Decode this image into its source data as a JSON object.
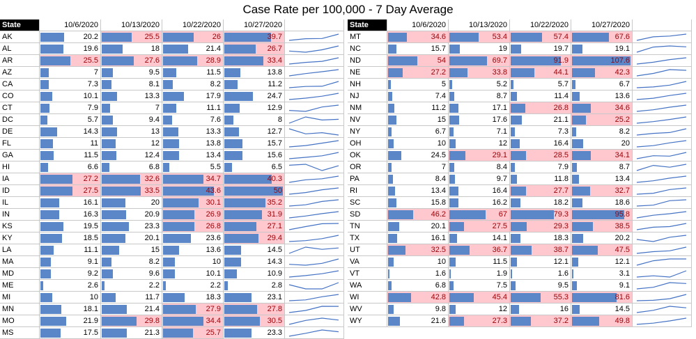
{
  "chart_data": {
    "type": "table",
    "title": "Case Rate per 100,000 - 7 Day Average",
    "state_header": "State",
    "dates": [
      "10/6/2020",
      "10/13/2020",
      "10/22/2020",
      "10/27/2020"
    ],
    "colors": {
      "bar": "#5b86c8",
      "highlight_fill": "#ffc7ce",
      "highlight_text": "#9c0006",
      "sparkline": "#4472c4"
    },
    "panels": [
      {
        "rows": [
          {
            "state": "AK",
            "values": [
              20.2,
              25.5,
              26,
              39.7
            ],
            "highlight": [
              false,
              true,
              true,
              true
            ]
          },
          {
            "state": "AL",
            "values": [
              19.6,
              18,
              21.4,
              26.7
            ],
            "highlight": [
              false,
              false,
              false,
              true
            ]
          },
          {
            "state": "AR",
            "values": [
              25.5,
              27.6,
              28.9,
              33.4
            ],
            "highlight": [
              true,
              true,
              true,
              true
            ]
          },
          {
            "state": "AZ",
            "values": [
              7,
              9.5,
              11.5,
              13.8
            ],
            "highlight": [
              false,
              false,
              false,
              false
            ]
          },
          {
            "state": "CA",
            "values": [
              7.3,
              8.1,
              8.2,
              11.2
            ],
            "highlight": [
              false,
              false,
              false,
              false
            ]
          },
          {
            "state": "CO",
            "values": [
              10.1,
              13.3,
              17.9,
              24.7
            ],
            "highlight": [
              false,
              false,
              false,
              false
            ]
          },
          {
            "state": "CT",
            "values": [
              7.9,
              7,
              11.1,
              12.9
            ],
            "highlight": [
              false,
              false,
              false,
              false
            ]
          },
          {
            "state": "DC",
            "values": [
              5.7,
              9.4,
              7.6,
              8
            ],
            "highlight": [
              false,
              false,
              false,
              false
            ]
          },
          {
            "state": "DE",
            "values": [
              14.3,
              13,
              13.3,
              12.7
            ],
            "highlight": [
              false,
              false,
              false,
              false
            ]
          },
          {
            "state": "FL",
            "values": [
              11,
              12,
              13.8,
              15.7
            ],
            "highlight": [
              false,
              false,
              false,
              false
            ]
          },
          {
            "state": "GA",
            "values": [
              11.5,
              12.4,
              13.4,
              15.6
            ],
            "highlight": [
              false,
              false,
              false,
              false
            ]
          },
          {
            "state": "HI",
            "values": [
              6.6,
              6.8,
              5.5,
              6.5
            ],
            "highlight": [
              false,
              false,
              false,
              false
            ]
          },
          {
            "state": "IA",
            "values": [
              27.2,
              32.6,
              34.7,
              40.3
            ],
            "highlight": [
              true,
              true,
              true,
              true
            ]
          },
          {
            "state": "ID",
            "values": [
              27.5,
              33.5,
              43.6,
              50
            ],
            "highlight": [
              true,
              true,
              true,
              true
            ]
          },
          {
            "state": "IL",
            "values": [
              16.1,
              20,
              30.1,
              35.2
            ],
            "highlight": [
              false,
              false,
              true,
              true
            ]
          },
          {
            "state": "IN",
            "values": [
              16.3,
              20.9,
              26.9,
              31.9
            ],
            "highlight": [
              false,
              false,
              true,
              true
            ]
          },
          {
            "state": "KS",
            "values": [
              19.5,
              23.3,
              26.8,
              27.1
            ],
            "highlight": [
              false,
              false,
              true,
              true
            ]
          },
          {
            "state": "KY",
            "values": [
              18.5,
              20.1,
              23.6,
              29.4
            ],
            "highlight": [
              false,
              false,
              false,
              true
            ]
          },
          {
            "state": "LA",
            "values": [
              11.1,
              15,
              13.6,
              14.5
            ],
            "highlight": [
              false,
              false,
              false,
              false
            ]
          },
          {
            "state": "MA",
            "values": [
              9.1,
              8.2,
              10,
              14.3
            ],
            "highlight": [
              false,
              false,
              false,
              false
            ]
          },
          {
            "state": "MD",
            "values": [
              9.2,
              9.6,
              10.1,
              10.9
            ],
            "highlight": [
              false,
              false,
              false,
              false
            ]
          },
          {
            "state": "ME",
            "values": [
              2.6,
              2.2,
              2.2,
              2.8
            ],
            "highlight": [
              false,
              false,
              false,
              false
            ]
          },
          {
            "state": "MI",
            "values": [
              10,
              11.7,
              18.3,
              23.1
            ],
            "highlight": [
              false,
              false,
              false,
              false
            ]
          },
          {
            "state": "MN",
            "values": [
              18.1,
              21.4,
              27.9,
              27.8
            ],
            "highlight": [
              false,
              false,
              true,
              true
            ]
          },
          {
            "state": "MO",
            "values": [
              21.9,
              29.8,
              34.4,
              30.5
            ],
            "highlight": [
              false,
              true,
              true,
              true
            ]
          },
          {
            "state": "MS",
            "values": [
              17.5,
              21.3,
              25.7,
              23.3
            ],
            "highlight": [
              false,
              false,
              true,
              false
            ]
          }
        ]
      },
      {
        "rows": [
          {
            "state": "MT",
            "values": [
              34.6,
              53.4,
              57.4,
              67.6
            ],
            "highlight": [
              true,
              true,
              true,
              true
            ]
          },
          {
            "state": "NC",
            "values": [
              15.7,
              19,
              19.7,
              19.1
            ],
            "highlight": [
              false,
              false,
              false,
              false
            ]
          },
          {
            "state": "ND",
            "values": [
              54,
              69.7,
              91.9,
              107.6
            ],
            "highlight": [
              true,
              true,
              true,
              true
            ]
          },
          {
            "state": "NE",
            "values": [
              27.2,
              33.8,
              44.1,
              42.3
            ],
            "highlight": [
              true,
              true,
              true,
              true
            ]
          },
          {
            "state": "NH",
            "values": [
              5,
              5.2,
              5.7,
              6.7
            ],
            "highlight": [
              false,
              false,
              false,
              false
            ]
          },
          {
            "state": "NJ",
            "values": [
              7.4,
              8.7,
              11.4,
              13.6
            ],
            "highlight": [
              false,
              false,
              false,
              false
            ]
          },
          {
            "state": "NM",
            "values": [
              11.2,
              17.1,
              26.8,
              34.6
            ],
            "highlight": [
              false,
              false,
              true,
              true
            ]
          },
          {
            "state": "NV",
            "values": [
              15,
              17.6,
              21.1,
              25.2
            ],
            "highlight": [
              false,
              false,
              false,
              true
            ]
          },
          {
            "state": "NY",
            "values": [
              6.7,
              7.1,
              7.3,
              8.2
            ],
            "highlight": [
              false,
              false,
              false,
              false
            ]
          },
          {
            "state": "OH",
            "values": [
              10,
              12,
              16.4,
              20
            ],
            "highlight": [
              false,
              false,
              false,
              false
            ]
          },
          {
            "state": "OK",
            "values": [
              24.5,
              29.1,
              28.5,
              34.1
            ],
            "highlight": [
              false,
              true,
              true,
              true
            ]
          },
          {
            "state": "OR",
            "values": [
              7,
              8.4,
              7.9,
              8.7
            ],
            "highlight": [
              false,
              false,
              false,
              false
            ]
          },
          {
            "state": "PA",
            "values": [
              8.4,
              9.7,
              11.8,
              13.4
            ],
            "highlight": [
              false,
              false,
              false,
              false
            ]
          },
          {
            "state": "RI",
            "values": [
              13.4,
              16.4,
              27.7,
              32.7
            ],
            "highlight": [
              false,
              false,
              true,
              true
            ]
          },
          {
            "state": "SC",
            "values": [
              15.8,
              16.2,
              18.2,
              18.6
            ],
            "highlight": [
              false,
              false,
              false,
              false
            ]
          },
          {
            "state": "SD",
            "values": [
              46.2,
              67,
              79.3,
              95.8
            ],
            "highlight": [
              true,
              true,
              true,
              true
            ]
          },
          {
            "state": "TN",
            "values": [
              20.1,
              27.5,
              29.3,
              38.5
            ],
            "highlight": [
              false,
              true,
              true,
              true
            ]
          },
          {
            "state": "TX",
            "values": [
              16.1,
              14.1,
              18.3,
              20.2
            ],
            "highlight": [
              false,
              false,
              false,
              false
            ]
          },
          {
            "state": "UT",
            "values": [
              32.5,
              36.7,
              38.7,
              47.5
            ],
            "highlight": [
              true,
              true,
              true,
              true
            ]
          },
          {
            "state": "VA",
            "values": [
              10,
              11.5,
              12.1,
              12.1
            ],
            "highlight": [
              false,
              false,
              false,
              false
            ]
          },
          {
            "state": "VT",
            "values": [
              1.6,
              1.9,
              1.6,
              3.1
            ],
            "highlight": [
              false,
              false,
              false,
              false
            ]
          },
          {
            "state": "WA",
            "values": [
              6.8,
              7.5,
              9.5,
              9.1
            ],
            "highlight": [
              false,
              false,
              false,
              false
            ]
          },
          {
            "state": "WI",
            "values": [
              42.8,
              45.4,
              55.3,
              81.6
            ],
            "highlight": [
              true,
              true,
              true,
              true
            ]
          },
          {
            "state": "WV",
            "values": [
              9.8,
              12,
              16,
              14.5
            ],
            "highlight": [
              false,
              false,
              false,
              false
            ]
          },
          {
            "state": "WY",
            "values": [
              21.6,
              27.3,
              37.2,
              49.8
            ],
            "highlight": [
              false,
              true,
              true,
              true
            ]
          }
        ]
      }
    ]
  }
}
